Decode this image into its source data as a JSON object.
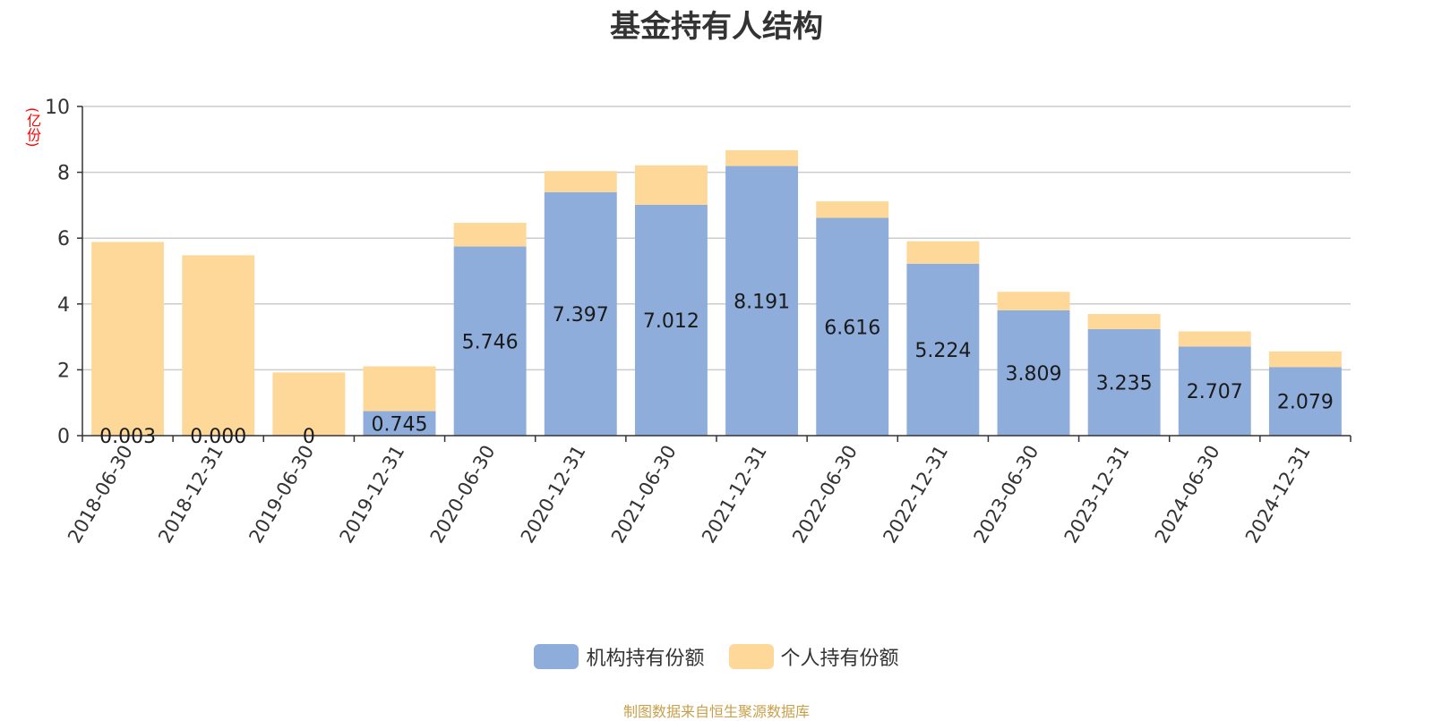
{
  "chart_data": {
    "type": "bar",
    "stacked": true,
    "title": "基金持有人结构",
    "y_unit_label": "(亿份)",
    "ylim": [
      0,
      10
    ],
    "yticks": [
      0,
      2,
      4,
      6,
      8,
      10
    ],
    "grid": true,
    "legend_position": "bottom",
    "categories": [
      "2018-06-30",
      "2018-12-31",
      "2019-06-30",
      "2019-12-31",
      "2020-06-30",
      "2020-12-31",
      "2021-06-30",
      "2021-12-31",
      "2022-06-30",
      "2022-12-31",
      "2023-06-30",
      "2023-12-31",
      "2024-06-30",
      "2024-12-31"
    ],
    "series": [
      {
        "name": "机构持有份额",
        "color": "#8eaddb",
        "values": [
          0.003,
          0.0,
          0,
          0.745,
          5.746,
          7.397,
          7.012,
          8.191,
          6.616,
          5.224,
          3.809,
          3.235,
          2.707,
          2.079
        ],
        "labels": [
          "0.003",
          "0.000",
          "0",
          "0.745",
          "5.746",
          "7.397",
          "7.012",
          "8.191",
          "6.616",
          "5.224",
          "3.809",
          "3.235",
          "2.707",
          "2.079"
        ]
      },
      {
        "name": "个人持有份额",
        "color": "#fed898",
        "values": [
          5.88,
          5.48,
          1.92,
          1.36,
          0.72,
          0.64,
          1.2,
          0.48,
          0.5,
          0.68,
          0.56,
          0.46,
          0.46,
          0.48
        ]
      }
    ],
    "source_note": "制图数据来自恒生聚源数据库"
  }
}
